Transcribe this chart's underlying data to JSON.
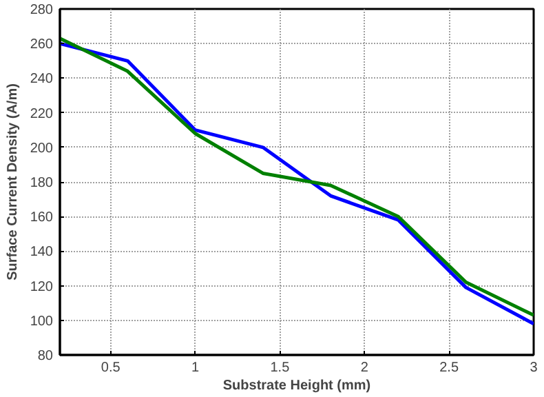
{
  "chart_data": {
    "type": "line",
    "xlabel": "Substrate Height (mm)",
    "ylabel": "Surface Current Density (A/m)",
    "x": [
      0.2,
      0.6,
      1.0,
      1.4,
      1.8,
      2.2,
      2.6,
      3.0
    ],
    "series": [
      {
        "color": "#0000ff",
        "values": [
          260,
          250,
          210,
          200,
          172,
          158,
          119,
          98
        ]
      },
      {
        "color": "#008000",
        "values": [
          263,
          244,
          208,
          185,
          178,
          160,
          122,
          103
        ]
      }
    ],
    "xlim": [
      0.2,
      3
    ],
    "ylim": [
      80,
      280
    ],
    "xticks": [
      0.5,
      1,
      1.5,
      2,
      2.5,
      3
    ],
    "yticks": [
      80,
      100,
      120,
      140,
      160,
      180,
      200,
      220,
      240,
      260,
      280
    ],
    "grid": true,
    "line_style": "solid"
  }
}
